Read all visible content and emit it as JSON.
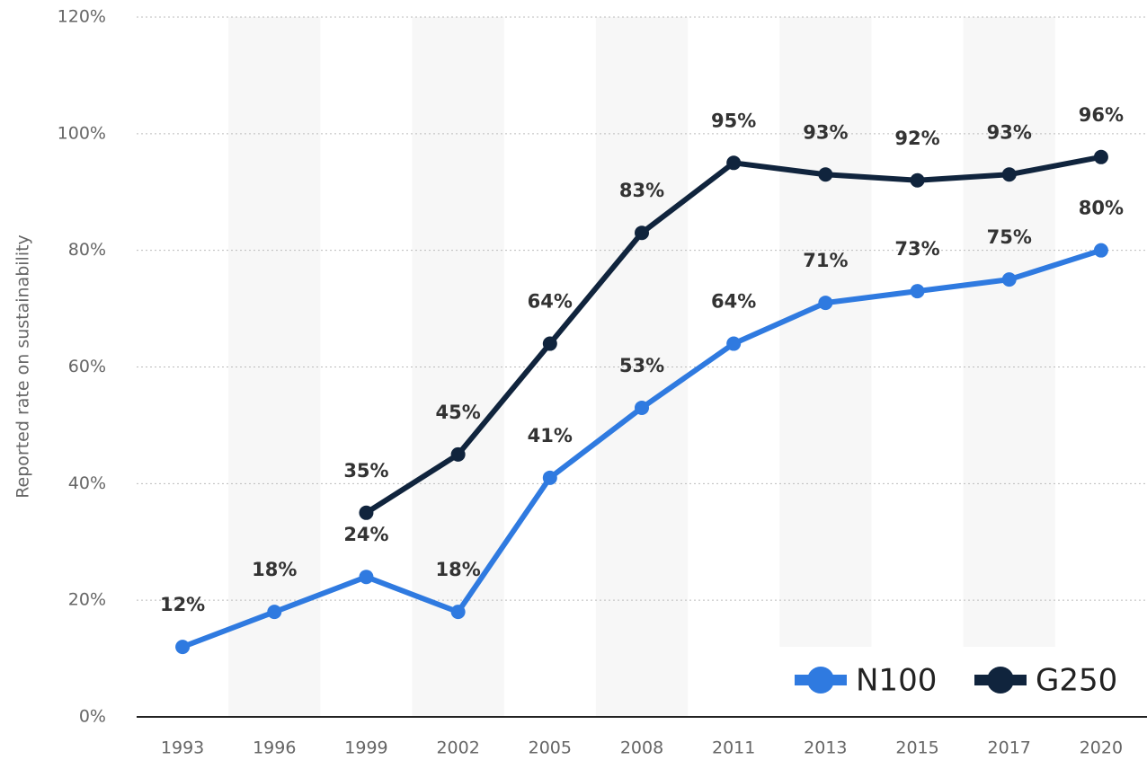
{
  "chart_data": {
    "type": "line",
    "y_label": "Reported rate on sustainability",
    "categories": [
      "1993",
      "1996",
      "1999",
      "2002",
      "2005",
      "2008",
      "2011",
      "2013",
      "2015",
      "2017",
      "2020"
    ],
    "series": [
      {
        "name": "N100",
        "color": "#2f7ae0",
        "values": [
          12,
          18,
          24,
          18,
          41,
          53,
          64,
          71,
          73,
          75,
          80
        ],
        "value_labels": [
          "12%",
          "18%",
          "24%",
          "18%",
          "41%",
          "53%",
          "64%",
          "71%",
          "73%",
          "75%",
          "80%"
        ]
      },
      {
        "name": "G250",
        "color": "#10243d",
        "values": [
          null,
          null,
          35,
          45,
          64,
          83,
          95,
          93,
          92,
          93,
          96
        ],
        "value_labels": [
          null,
          null,
          "35%",
          "45%",
          "64%",
          "83%",
          "95%",
          "93%",
          "92%",
          "93%",
          "96%"
        ]
      }
    ],
    "ylim": [
      0,
      120
    ],
    "yticks": [
      {
        "value": 0,
        "label": "0%"
      },
      {
        "value": 20,
        "label": "20%"
      },
      {
        "value": 40,
        "label": "40%"
      },
      {
        "value": 60,
        "label": "60%"
      },
      {
        "value": 80,
        "label": "80%"
      },
      {
        "value": 100,
        "label": "100%"
      },
      {
        "value": 120,
        "label": "120%"
      }
    ],
    "grid": true,
    "legend": "lower right"
  }
}
